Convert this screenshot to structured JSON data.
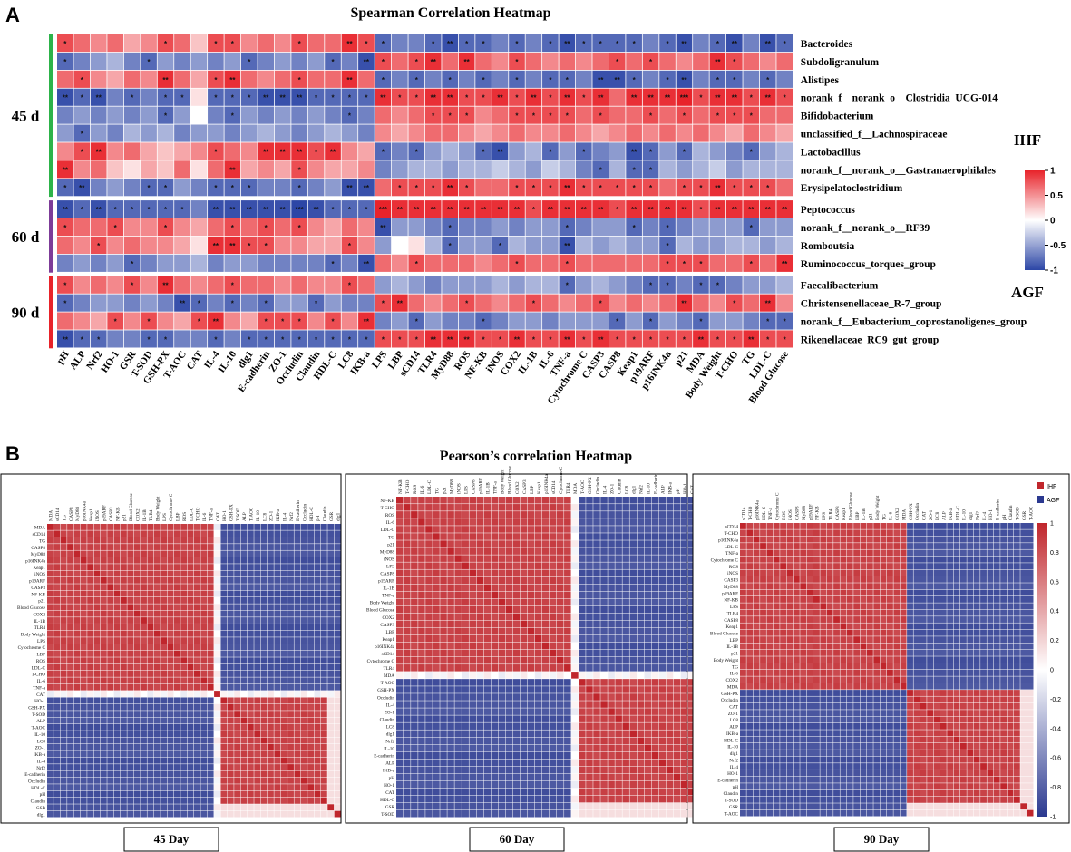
{
  "panel_a": {
    "letter": "A",
    "title": "Spearman Correlation Heatmap",
    "groups": [
      "45 d",
      "60 d",
      "90 d"
    ],
    "legend_top": "IHF",
    "legend_bottom": "AGF",
    "colorbar_ticks": [
      "1",
      "0.5",
      "0",
      "-0.5",
      "-1"
    ],
    "colors": {
      "positive": "#e8232a",
      "negative": "#2c46a6",
      "green_bar": "#2db34a",
      "purple_bar": "#7d3c98",
      "red_bar": "#e8232a"
    }
  },
  "panel_b": {
    "letter": "B",
    "title": "Pearson’s correlation Heatmap",
    "legend_ihf": "IHF",
    "legend_agf": "AGF",
    "colorbar_ticks": [
      "1",
      "0.8",
      "0.6",
      "0.4",
      "0.2",
      "0",
      "-0.2",
      "-0.4",
      "-0.6",
      "-0.8",
      "-1"
    ],
    "day_labels": [
      "45 Day",
      "60 Day",
      "90 Day"
    ],
    "colors": {
      "positive": "#c0262c",
      "negative": "#2b3990"
    }
  },
  "chart_data": [
    {
      "type": "heatmap",
      "title": "Spearman Correlation Heatmap",
      "value_range": [
        -1,
        1
      ],
      "rows": [
        "Bacteroides",
        "Subdoligranulum",
        "Alistipes",
        "norank_f__norank_o__Clostridia_UCG-014",
        "Bifidobacterium",
        "unclassified_f__Lachnospiraceae",
        "Lactobacillus",
        "norank_f__norank_o__Gastranaerophilales",
        "Erysipelatoclostridium",
        "Peptococcus",
        "norank_f__norank_o__RF39",
        "Romboutsia",
        "Ruminococcus_torques_group",
        "Faecalibacterium",
        "Christensenellaceae_R-7_group",
        "norank_f__Eubacterium_coprostanoligenes_group",
        "Rikenellaceae_RC9_gut_group"
      ],
      "row_groups": [
        {
          "label": "45 d",
          "rows": 9
        },
        {
          "label": "60 d",
          "rows": 4
        },
        {
          "label": "90 d",
          "rows": 4
        }
      ],
      "columns": [
        "pH",
        "ALP",
        "Nrf2",
        "HO-1",
        "GSR",
        "T-SOD",
        "GSH-PX",
        "T-AOC",
        "CAT",
        "IL-4",
        "IL-10",
        "dlg1",
        "E-cadherin",
        "ZO-1",
        "Occludin",
        "Claudin",
        "HDL-C",
        "LC8",
        "IKB-a",
        "LPS",
        "LBP",
        "sCD14",
        "TLR4",
        "MyD88",
        "ROS",
        "NF-KB",
        "iNOS",
        "COX2",
        "IL-1B",
        "IL-6",
        "TNF-a",
        "Cytochrome C",
        "CASP3",
        "CASP8",
        "Keap1",
        "p19ARF",
        "p16INK4a",
        "p21",
        "MDA",
        "Body Weight",
        "T-CHO",
        "TG",
        "LDL-C",
        "Blood Glucose"
      ],
      "pattern": "positive with antioxidant markers for IHF-associated taxa; sign reverses at column LPS",
      "values": [
        [
          0.6,
          0.5,
          0.4,
          0.5,
          0.3,
          0.4,
          0.6,
          0.5,
          0.2,
          0.6,
          0.6,
          0.4,
          0.5,
          0.4,
          0.6,
          0.5,
          0.5,
          0.7,
          0.6,
          -0.6,
          -0.5,
          -0.5,
          -0.6,
          -0.7,
          -0.6,
          -0.6,
          -0.5,
          -0.6,
          -0.5,
          -0.6,
          -0.7,
          -0.6,
          -0.6,
          -0.6,
          -0.6,
          -0.5,
          -0.6,
          -0.7,
          -0.5,
          -0.6,
          -0.7,
          -0.5,
          -0.7,
          -0.6
        ],
        [
          -0.6,
          -0.5,
          -0.4,
          -0.3,
          -0.5,
          -0.6,
          -0.4,
          -0.5,
          -0.4,
          -0.5,
          -0.4,
          -0.6,
          -0.5,
          -0.4,
          -0.5,
          -0.4,
          -0.6,
          -0.5,
          -0.7,
          0.6,
          0.5,
          0.6,
          0.7,
          0.5,
          0.7,
          0.5,
          0.4,
          0.6,
          0.5,
          0.4,
          0.5,
          0.4,
          0.5,
          0.6,
          0.5,
          0.6,
          0.5,
          0.4,
          0.5,
          0.7,
          0.6,
          0.5,
          0.4,
          0.5
        ],
        [
          0.5,
          0.6,
          0.4,
          0.3,
          0.5,
          0.4,
          0.7,
          0.5,
          0.3,
          0.6,
          0.7,
          0.5,
          0.4,
          0.5,
          0.6,
          0.5,
          0.5,
          0.7,
          0.5,
          -0.6,
          -0.5,
          -0.6,
          -0.5,
          -0.6,
          -0.5,
          -0.6,
          -0.5,
          -0.6,
          -0.5,
          -0.6,
          -0.6,
          -0.5,
          -0.7,
          -0.7,
          -0.6,
          -0.5,
          -0.6,
          -0.7,
          -0.5,
          -0.6,
          -0.6,
          -0.5,
          -0.6,
          -0.5
        ],
        [
          -0.7,
          -0.6,
          -0.7,
          -0.5,
          -0.6,
          -0.5,
          -0.6,
          -0.6,
          0.1,
          -0.6,
          -0.6,
          -0.6,
          -0.7,
          -0.7,
          -0.7,
          -0.6,
          -0.6,
          -0.6,
          -0.6,
          0.7,
          0.6,
          0.6,
          0.7,
          0.7,
          0.6,
          0.6,
          0.7,
          0.6,
          0.7,
          0.6,
          0.7,
          0.6,
          0.7,
          0.5,
          0.7,
          0.7,
          0.7,
          0.8,
          0.6,
          0.7,
          0.7,
          0.6,
          0.7,
          0.6
        ],
        [
          -0.5,
          -0.4,
          -0.5,
          -0.4,
          -0.5,
          -0.4,
          -0.6,
          -0.4,
          0.0,
          -0.5,
          -0.6,
          -0.4,
          -0.5,
          -0.4,
          -0.5,
          -0.4,
          -0.5,
          -0.6,
          -0.5,
          0.5,
          0.4,
          0.5,
          0.6,
          0.6,
          0.6,
          0.4,
          0.5,
          0.6,
          0.6,
          0.6,
          0.6,
          0.5,
          0.6,
          0.5,
          0.5,
          0.6,
          0.5,
          0.6,
          0.5,
          0.6,
          0.6,
          0.6,
          0.5,
          0.5
        ],
        [
          -0.4,
          -0.6,
          -0.4,
          -0.5,
          -0.3,
          -0.4,
          -0.3,
          -0.5,
          -0.4,
          -0.4,
          -0.5,
          -0.4,
          -0.3,
          -0.4,
          -0.5,
          -0.4,
          -0.3,
          -0.4,
          -0.5,
          0.4,
          0.3,
          0.4,
          0.5,
          0.5,
          0.4,
          0.3,
          0.4,
          0.5,
          0.4,
          0.4,
          0.5,
          0.4,
          0.3,
          0.4,
          0.5,
          0.4,
          0.5,
          0.4,
          0.5,
          0.4,
          0.3,
          0.5,
          0.4,
          0.3
        ],
        [
          0.4,
          0.6,
          0.7,
          0.4,
          0.5,
          0.3,
          0.2,
          0.3,
          0.4,
          0.6,
          0.5,
          0.4,
          0.7,
          0.7,
          0.7,
          0.6,
          0.7,
          0.4,
          0.3,
          -0.6,
          -0.5,
          -0.6,
          -0.4,
          -0.3,
          -0.4,
          -0.6,
          -0.7,
          -0.4,
          -0.3,
          -0.6,
          -0.4,
          -0.6,
          -0.5,
          -0.4,
          -0.7,
          -0.6,
          -0.4,
          -0.6,
          -0.3,
          -0.4,
          -0.5,
          -0.6,
          -0.4,
          -0.3
        ],
        [
          0.7,
          0.4,
          0.5,
          0.2,
          0.1,
          0.3,
          0.2,
          0.5,
          0.1,
          0.5,
          0.7,
          0.3,
          0.4,
          0.3,
          0.6,
          0.4,
          0.3,
          0.3,
          0.4,
          -0.5,
          -0.4,
          -0.3,
          -0.3,
          -0.4,
          -0.3,
          -0.3,
          -0.2,
          -0.3,
          -0.4,
          -0.2,
          -0.3,
          -0.5,
          -0.6,
          -0.3,
          -0.6,
          -0.6,
          -0.3,
          -0.4,
          -0.3,
          -0.2,
          -0.4,
          -0.3,
          -0.3,
          -0.3
        ],
        [
          -0.6,
          -0.7,
          -0.5,
          -0.4,
          -0.5,
          -0.6,
          -0.6,
          -0.4,
          -0.5,
          -0.6,
          -0.6,
          -0.6,
          -0.5,
          -0.5,
          -0.6,
          -0.5,
          -0.4,
          -0.7,
          -0.7,
          0.5,
          0.6,
          0.6,
          0.6,
          0.7,
          0.6,
          0.5,
          0.5,
          0.6,
          0.6,
          0.6,
          0.7,
          0.6,
          0.6,
          0.6,
          0.6,
          0.6,
          0.5,
          0.6,
          0.6,
          0.7,
          0.6,
          0.6,
          0.6,
          0.5
        ],
        [
          -0.7,
          -0.6,
          -0.7,
          -0.6,
          -0.6,
          -0.6,
          -0.6,
          -0.6,
          -0.5,
          -0.7,
          -0.7,
          -0.7,
          -0.7,
          -0.7,
          -0.8,
          -0.7,
          -0.6,
          -0.6,
          -0.6,
          0.8,
          0.7,
          0.7,
          0.7,
          0.7,
          0.7,
          0.7,
          0.7,
          0.7,
          0.6,
          0.7,
          0.7,
          0.7,
          0.7,
          0.6,
          0.7,
          0.7,
          0.7,
          0.7,
          0.6,
          0.7,
          0.7,
          0.7,
          0.7,
          0.7
        ],
        [
          0.6,
          0.5,
          0.5,
          0.6,
          0.4,
          0.4,
          0.6,
          0.4,
          0.3,
          0.5,
          0.6,
          0.5,
          0.6,
          0.5,
          0.6,
          0.4,
          0.3,
          0.5,
          0.4,
          -0.7,
          -0.4,
          -0.4,
          -0.5,
          -0.6,
          -0.5,
          -0.5,
          -0.4,
          -0.5,
          -0.4,
          -0.4,
          -0.6,
          -0.5,
          -0.4,
          -0.4,
          -0.6,
          -0.5,
          -0.6,
          -0.5,
          -0.4,
          -0.4,
          -0.4,
          -0.6,
          -0.4,
          -0.4
        ],
        [
          0.5,
          0.4,
          0.6,
          0.4,
          0.5,
          0.4,
          0.4,
          0.3,
          0.1,
          0.7,
          0.7,
          0.6,
          0.6,
          0.4,
          0.4,
          0.3,
          0.3,
          0.6,
          0.4,
          -0.4,
          0.0,
          0.1,
          -0.3,
          -0.6,
          -0.4,
          -0.4,
          -0.6,
          -0.3,
          -0.4,
          -0.4,
          -0.7,
          -0.3,
          -0.4,
          -0.3,
          -0.4,
          -0.4,
          -0.6,
          -0.3,
          -0.4,
          -0.4,
          -0.3,
          -0.3,
          -0.4,
          -0.3
        ],
        [
          -0.5,
          -0.4,
          -0.5,
          -0.4,
          -0.6,
          -0.5,
          -0.4,
          -0.4,
          -0.3,
          -0.5,
          -0.4,
          -0.4,
          -0.5,
          -0.5,
          -0.5,
          -0.5,
          -0.6,
          -0.5,
          -0.7,
          0.5,
          0.4,
          0.6,
          0.5,
          0.5,
          0.5,
          0.4,
          0.5,
          0.6,
          0.5,
          0.5,
          0.6,
          0.5,
          0.5,
          0.5,
          0.5,
          0.5,
          0.6,
          0.6,
          0.6,
          0.5,
          0.5,
          0.6,
          0.5,
          0.7
        ],
        [
          0.6,
          0.4,
          0.5,
          0.4,
          0.6,
          0.4,
          0.7,
          0.5,
          0.4,
          0.5,
          0.6,
          0.5,
          0.5,
          0.4,
          0.5,
          0.4,
          0.4,
          0.6,
          0.5,
          -0.4,
          -0.3,
          -0.4,
          -0.5,
          -0.4,
          -0.4,
          -0.4,
          -0.3,
          -0.4,
          -0.3,
          -0.3,
          -0.6,
          -0.4,
          -0.3,
          -0.4,
          -0.5,
          -0.6,
          -0.6,
          -0.5,
          -0.6,
          -0.6,
          -0.5,
          -0.4,
          -0.4,
          -0.3
        ],
        [
          -0.6,
          -0.5,
          -0.4,
          -0.4,
          -0.5,
          -0.4,
          -0.5,
          -0.7,
          -0.6,
          -0.5,
          -0.6,
          -0.5,
          -0.6,
          -0.4,
          -0.4,
          -0.6,
          -0.4,
          -0.5,
          -0.5,
          0.6,
          0.7,
          0.5,
          0.4,
          0.5,
          0.6,
          0.5,
          0.4,
          0.5,
          0.6,
          0.5,
          0.4,
          0.5,
          0.6,
          0.4,
          0.5,
          0.4,
          0.5,
          0.7,
          0.5,
          0.4,
          0.6,
          0.5,
          0.7,
          0.4
        ],
        [
          0.5,
          0.4,
          0.3,
          0.6,
          0.4,
          0.6,
          0.4,
          0.3,
          0.6,
          0.7,
          0.4,
          0.3,
          0.6,
          0.6,
          0.6,
          0.4,
          0.6,
          0.4,
          0.7,
          -0.5,
          -0.4,
          -0.6,
          -0.4,
          -0.5,
          -0.5,
          -0.6,
          -0.5,
          -0.4,
          -0.4,
          -0.5,
          -0.4,
          -0.4,
          -0.4,
          -0.6,
          -0.4,
          -0.6,
          -0.4,
          -0.5,
          -0.6,
          -0.4,
          -0.4,
          -0.5,
          -0.6,
          -0.6
        ],
        [
          -0.7,
          -0.6,
          -0.6,
          -0.5,
          -0.5,
          -0.6,
          -0.6,
          -0.5,
          -0.5,
          -0.6,
          -0.5,
          -0.6,
          -0.6,
          -0.6,
          -0.6,
          -0.6,
          -0.6,
          -0.6,
          -0.6,
          0.6,
          0.6,
          0.6,
          0.7,
          0.7,
          0.7,
          0.6,
          0.6,
          0.7,
          0.6,
          0.6,
          0.7,
          0.6,
          0.7,
          0.6,
          0.6,
          0.6,
          0.6,
          0.6,
          0.7,
          0.6,
          0.6,
          0.7,
          0.6,
          0.6
        ]
      ],
      "significance_rule": "* |r| >= 0.6, ** |r| >= 0.7, *** |r| >= 0.8",
      "legend": {
        "positive": "IHF",
        "negative": "AGF"
      }
    },
    {
      "type": "heatmap",
      "title": "Pearson’s correlation Heatmap",
      "panel": "45 Day",
      "value_range": [
        -1,
        1
      ],
      "positive_block": [
        "MDA",
        "sCD14",
        "TG",
        "CASP8",
        "MyD88",
        "p16INK4a",
        "Keap1",
        "iNOS",
        "p19ARF",
        "CASP3",
        "NF-KB",
        "p21",
        "Blood Glucose",
        "COX2",
        "IL-1B",
        "TLR4",
        "Body Weight",
        "LPS",
        "Cytochrome C",
        "LBP",
        "ROS",
        "LDL-C",
        "T-CHO",
        "IL-6",
        "TNF-a"
      ],
      "separator": [
        "CAT"
      ],
      "negative_block": [
        "HO-1",
        "GSH-PX",
        "T-SOD",
        "ALP",
        "T-AOC",
        "IL-10",
        "LC8",
        "ZO-1",
        "IKB-a",
        "IL-4",
        "Nrf2",
        "E-cadherin",
        "Occludin",
        "HDL-C",
        "pH",
        "Claudin",
        "GSR",
        "dlg1"
      ],
      "within_block_r": 0.9,
      "between_block_r": -0.9
    },
    {
      "type": "heatmap",
      "title": "Pearson’s correlation Heatmap",
      "panel": "60 Day",
      "value_range": [
        -1,
        1
      ],
      "positive_block": [
        "NF-KB",
        "T-CHO",
        "ROS",
        "IL-6",
        "LDL-C",
        "TG",
        "p21",
        "MyD88",
        "iNOS",
        "LPS",
        "CASP8",
        "p19ARF",
        "IL-1B",
        "TNF-a",
        "Body Weight",
        "Blood Glucose",
        "COX2",
        "CASP3",
        "LBP",
        "Keap1",
        "p16INK4a",
        "sCD14",
        "Cytochrome C",
        "TLR4"
      ],
      "separator": [
        "MDA"
      ],
      "negative_block": [
        "T-AOC",
        "GSH-PX",
        "Occludin",
        "IL-4",
        "ZO-1",
        "Claudin",
        "LC8",
        "dlg1",
        "Nrf2",
        "IL-10",
        "E-cadherin",
        "ALP",
        "IKB-a",
        "pH",
        "HO-1",
        "CAT",
        "HDL-C",
        "GSR",
        "T-SOD"
      ],
      "within_block_r": 0.9,
      "between_block_r": -0.9
    },
    {
      "type": "heatmap",
      "title": "Pearson’s correlation Heatmap",
      "panel": "90 Day",
      "value_range": [
        -1,
        1
      ],
      "positive_block": [
        "sCD14",
        "T-CHO",
        "p16INK4a",
        "LDL-C",
        "TNF-a",
        "Cytochrome C",
        "ROS",
        "iNOS",
        "CASP3",
        "MyD88",
        "p19ARF",
        "NF-KB",
        "LPS",
        "TLR4",
        "CASP8",
        "Keap1",
        "Blood Glucose",
        "LBP",
        "IL-1B",
        "p21",
        "Body Weight",
        "TG",
        "IL-6",
        "COX2",
        "MDA"
      ],
      "negative_block": [
        "GSH-PX",
        "Occludin",
        "CAT",
        "ZO-1",
        "LC8",
        "ALP",
        "IKB-a",
        "HDL-C",
        "IL-10",
        "dlg1",
        "Nrf2",
        "IL-4",
        "HO-1",
        "E-cadherin",
        "pH",
        "Claudin",
        "T-SOD",
        "GSR",
        "T-AOC"
      ],
      "within_block_r": 0.9,
      "between_block_r": -0.9
    }
  ]
}
